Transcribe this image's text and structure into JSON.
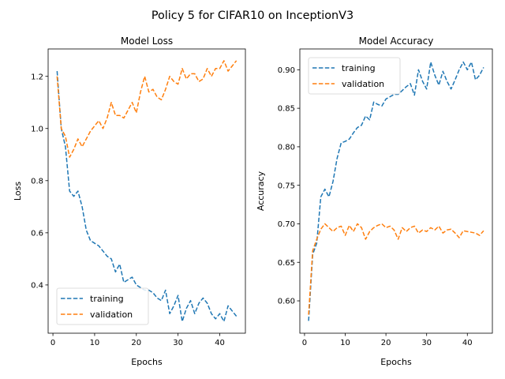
{
  "suptitle": "Policy 5 for CIFAR10 on InceptionV3",
  "colors": {
    "training": "#1f77b4",
    "validation": "#ff7f0e"
  },
  "chart_data": [
    {
      "type": "line",
      "title": "Model Loss",
      "xlabel": "Epochs",
      "ylabel": "Loss",
      "xlim": [
        -1.15,
        46.15
      ],
      "ylim": [
        0.215,
        1.305
      ],
      "xticks": [
        0,
        10,
        20,
        30,
        40
      ],
      "yticks": [
        0.4,
        0.6,
        0.8,
        1.0,
        1.2
      ],
      "ytick_labels": [
        "0.4",
        "0.6",
        "0.8",
        "1.0",
        "1.2"
      ],
      "legend": "lower-left",
      "grid": false,
      "x": [
        1,
        2,
        3,
        4,
        5,
        6,
        7,
        8,
        9,
        10,
        11,
        12,
        13,
        14,
        15,
        16,
        17,
        18,
        19,
        20,
        21,
        22,
        23,
        24,
        25,
        26,
        27,
        28,
        29,
        30,
        31,
        32,
        33,
        34,
        35,
        36,
        37,
        38,
        39,
        40,
        41,
        42,
        43,
        44
      ],
      "series": [
        {
          "name": "training",
          "values": [
            1.22,
            1.0,
            0.93,
            0.76,
            0.74,
            0.76,
            0.7,
            0.61,
            0.57,
            0.56,
            0.55,
            0.53,
            0.51,
            0.5,
            0.45,
            0.48,
            0.41,
            0.42,
            0.43,
            0.4,
            0.39,
            0.38,
            0.38,
            0.37,
            0.35,
            0.34,
            0.38,
            0.29,
            0.32,
            0.36,
            0.26,
            0.31,
            0.34,
            0.29,
            0.33,
            0.35,
            0.33,
            0.29,
            0.27,
            0.29,
            0.26,
            0.32,
            0.3,
            0.28
          ]
        },
        {
          "name": "validation",
          "values": [
            1.2,
            1.0,
            0.97,
            0.89,
            0.92,
            0.96,
            0.93,
            0.96,
            0.99,
            1.01,
            1.03,
            1.0,
            1.04,
            1.1,
            1.05,
            1.05,
            1.04,
            1.07,
            1.1,
            1.06,
            1.14,
            1.2,
            1.14,
            1.15,
            1.12,
            1.11,
            1.15,
            1.2,
            1.18,
            1.17,
            1.23,
            1.19,
            1.21,
            1.21,
            1.18,
            1.19,
            1.23,
            1.2,
            1.23,
            1.23,
            1.26,
            1.22,
            1.24,
            1.26
          ]
        }
      ]
    },
    {
      "type": "line",
      "title": "Model Accuracy",
      "xlabel": "Epochs",
      "ylabel": "Accuracy",
      "xlim": [
        -1.15,
        46.15
      ],
      "ylim": [
        0.558,
        0.927
      ],
      "xticks": [
        0,
        10,
        20,
        30,
        40
      ],
      "yticks": [
        0.6,
        0.65,
        0.7,
        0.75,
        0.8,
        0.85,
        0.9
      ],
      "ytick_labels": [
        "0.60",
        "0.65",
        "0.70",
        "0.75",
        "0.80",
        "0.85",
        "0.90"
      ],
      "legend": "upper-left",
      "grid": false,
      "x": [
        1,
        2,
        3,
        4,
        5,
        6,
        7,
        8,
        9,
        10,
        11,
        12,
        13,
        14,
        15,
        16,
        17,
        18,
        19,
        20,
        21,
        22,
        23,
        24,
        25,
        26,
        27,
        28,
        29,
        30,
        31,
        32,
        33,
        34,
        35,
        36,
        37,
        38,
        39,
        40,
        41,
        42,
        43,
        44
      ],
      "series": [
        {
          "name": "training",
          "values": [
            0.574,
            0.66,
            0.675,
            0.735,
            0.745,
            0.735,
            0.755,
            0.785,
            0.805,
            0.807,
            0.81,
            0.818,
            0.825,
            0.828,
            0.84,
            0.835,
            0.858,
            0.855,
            0.853,
            0.862,
            0.865,
            0.868,
            0.868,
            0.873,
            0.878,
            0.882,
            0.867,
            0.9,
            0.885,
            0.875,
            0.91,
            0.893,
            0.88,
            0.898,
            0.885,
            0.875,
            0.887,
            0.9,
            0.91,
            0.9,
            0.91,
            0.887,
            0.893,
            0.903
          ]
        },
        {
          "name": "validation",
          "values": [
            0.582,
            0.665,
            0.68,
            0.693,
            0.7,
            0.695,
            0.69,
            0.695,
            0.697,
            0.685,
            0.698,
            0.69,
            0.7,
            0.695,
            0.68,
            0.69,
            0.695,
            0.698,
            0.7,
            0.695,
            0.697,
            0.692,
            0.68,
            0.695,
            0.69,
            0.695,
            0.697,
            0.688,
            0.692,
            0.69,
            0.695,
            0.692,
            0.697,
            0.688,
            0.692,
            0.693,
            0.688,
            0.682,
            0.691,
            0.69,
            0.689,
            0.688,
            0.685,
            0.691
          ]
        }
      ]
    }
  ]
}
